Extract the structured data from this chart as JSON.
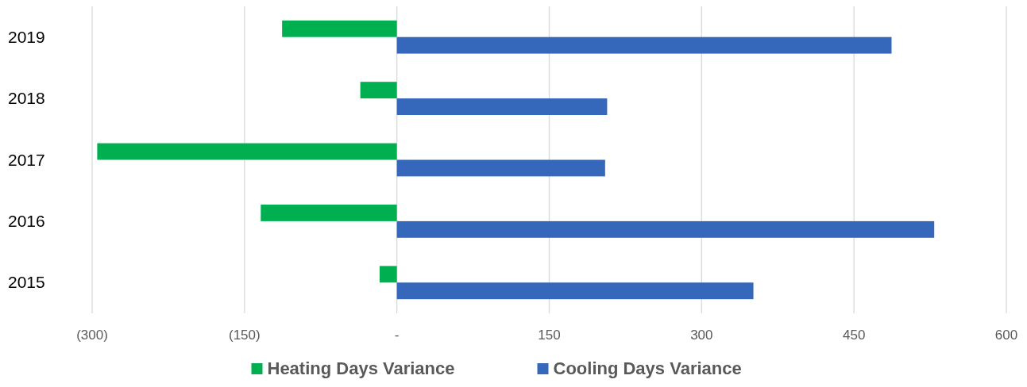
{
  "chart_data": {
    "type": "bar",
    "orientation": "horizontal",
    "categories": [
      "2019",
      "2018",
      "2017",
      "2016",
      "2015"
    ],
    "series": [
      {
        "name": "Heating Days Variance",
        "color": "#00b050",
        "values": [
          -113,
          -36,
          -295,
          -134,
          -17
        ]
      },
      {
        "name": "Cooling Days Variance",
        "color": "#3568bb",
        "values": [
          487,
          207,
          205,
          529,
          351
        ]
      }
    ],
    "xlim": [
      -300,
      600
    ],
    "xticks": [
      {
        "value": -300,
        "label": "(300)"
      },
      {
        "value": -150,
        "label": "(150)"
      },
      {
        "value": 0,
        "label": "-"
      },
      150,
      300,
      450,
      600
    ],
    "grid": "x",
    "legend": "bottom"
  }
}
